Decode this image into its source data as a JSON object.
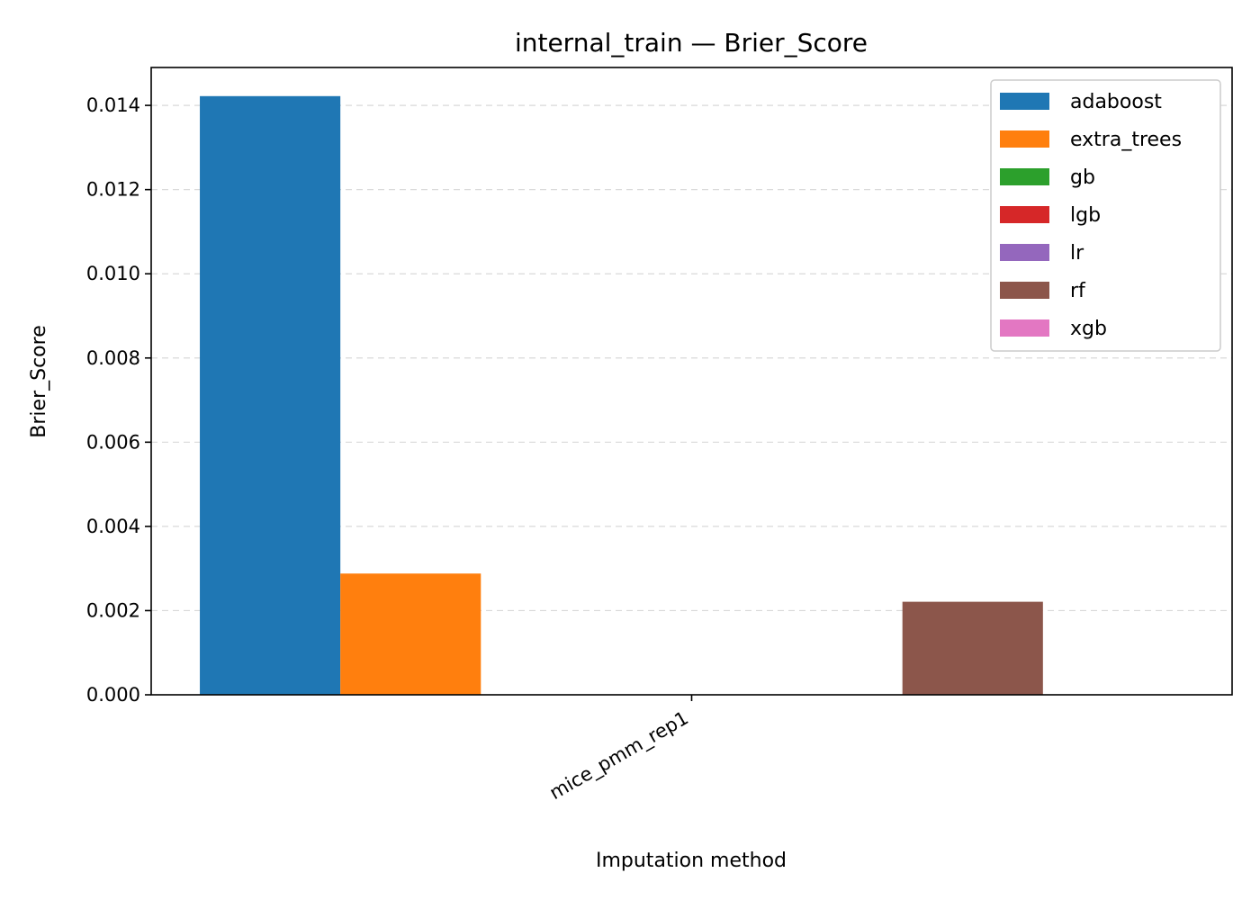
{
  "chart_data": {
    "type": "bar",
    "title": "internal_train — Brier_Score",
    "xlabel": "Imputation method",
    "ylabel": "Brier_Score",
    "categories": [
      "mice_pmm_rep1"
    ],
    "ylim": [
      0,
      0.0149
    ],
    "yticks": [
      "0.000",
      "0.002",
      "0.004",
      "0.006",
      "0.008",
      "0.010",
      "0.012",
      "0.014"
    ],
    "ytick_values": [
      0,
      0.002,
      0.004,
      0.006,
      0.008,
      0.01,
      0.012,
      0.014
    ],
    "grid": "y-dashed",
    "legend_position": "top-right",
    "series": [
      {
        "name": "adaboost",
        "color": "#1f77b4",
        "values": [
          0.01422
        ]
      },
      {
        "name": "extra_trees",
        "color": "#ff7f0e",
        "values": [
          0.00288
        ]
      },
      {
        "name": "gb",
        "color": "#2ca02c",
        "values": [
          0
        ]
      },
      {
        "name": "lgb",
        "color": "#d62728",
        "values": [
          0
        ]
      },
      {
        "name": "lr",
        "color": "#9467bd",
        "values": [
          0
        ]
      },
      {
        "name": "rf",
        "color": "#8c564b",
        "values": [
          0.00221
        ]
      },
      {
        "name": "xgb",
        "color": "#e377c2",
        "values": [
          0
        ]
      }
    ]
  }
}
